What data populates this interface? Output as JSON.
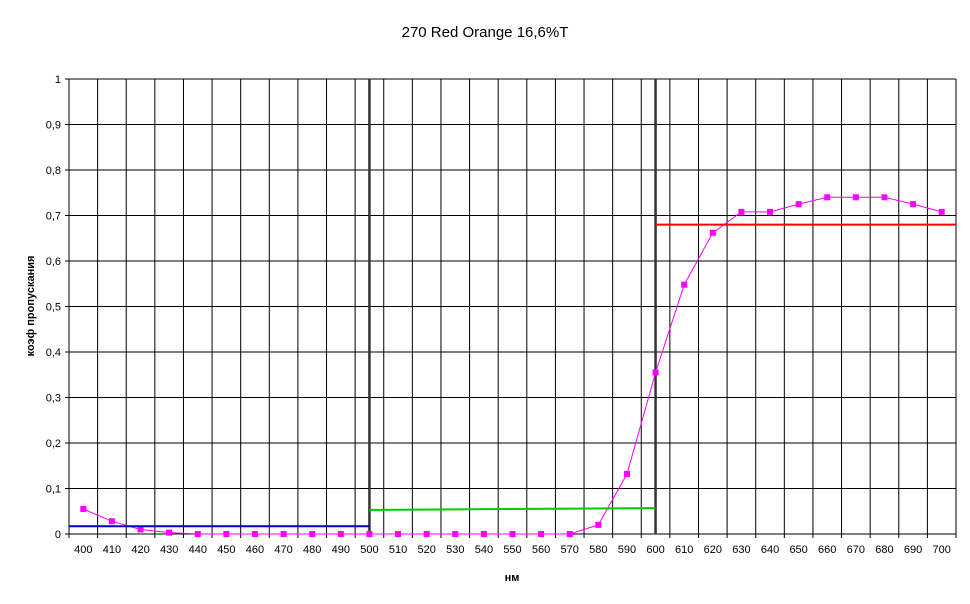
{
  "chart_data": {
    "type": "line",
    "title": "270 Red Orange 16,6%T",
    "xlabel": "нм",
    "ylabel": "коэф пропускания",
    "xlim": [
      395,
      705
    ],
    "ylim": [
      0,
      1
    ],
    "grid": true,
    "x_ticks": [
      400,
      410,
      420,
      430,
      440,
      450,
      460,
      470,
      480,
      490,
      500,
      510,
      520,
      530,
      540,
      550,
      560,
      570,
      580,
      590,
      600,
      610,
      620,
      630,
      640,
      650,
      660,
      670,
      680,
      690,
      700
    ],
    "y_ticks": [
      0,
      0.1,
      0.2,
      0.3,
      0.4,
      0.5,
      0.6,
      0.7,
      0.8,
      0.9,
      1
    ],
    "y_tick_labels": [
      "0",
      "0,1",
      "0,2",
      "0,3",
      "0,4",
      "0,5",
      "0,6",
      "0,7",
      "0,8",
      "0,9",
      "1"
    ],
    "series": [
      {
        "color": "#ff00ff",
        "marker": "square",
        "x": [
          400,
          410,
          420,
          430,
          440,
          450,
          460,
          470,
          480,
          490,
          500,
          510,
          520,
          530,
          540,
          550,
          560,
          570,
          580,
          590,
          600,
          610,
          620,
          630,
          640,
          650,
          660,
          670,
          680,
          690,
          700
        ],
        "y": [
          0.055,
          0.028,
          0.01,
          0.003,
          0,
          0,
          0,
          0,
          0,
          0,
          0,
          0,
          0,
          0,
          0,
          0,
          0,
          0,
          0.02,
          0.132,
          0.355,
          0.548,
          0.662,
          0.708,
          0.708,
          0.725,
          0.74,
          0.74,
          0.74,
          0.725,
          0.708
        ]
      },
      {
        "color": "#0000cc",
        "x": [
          395,
          500
        ],
        "y": [
          0.017,
          0.017
        ]
      },
      {
        "color": "#00cc00",
        "x": [
          500,
          600
        ],
        "y": [
          0.053,
          0.057
        ]
      },
      {
        "color": "#ff0000",
        "x": [
          600,
          705
        ],
        "y": [
          0.68,
          0.68
        ]
      }
    ],
    "vertical_lines": [
      500,
      600
    ],
    "vertical_line_color": "#333333"
  }
}
